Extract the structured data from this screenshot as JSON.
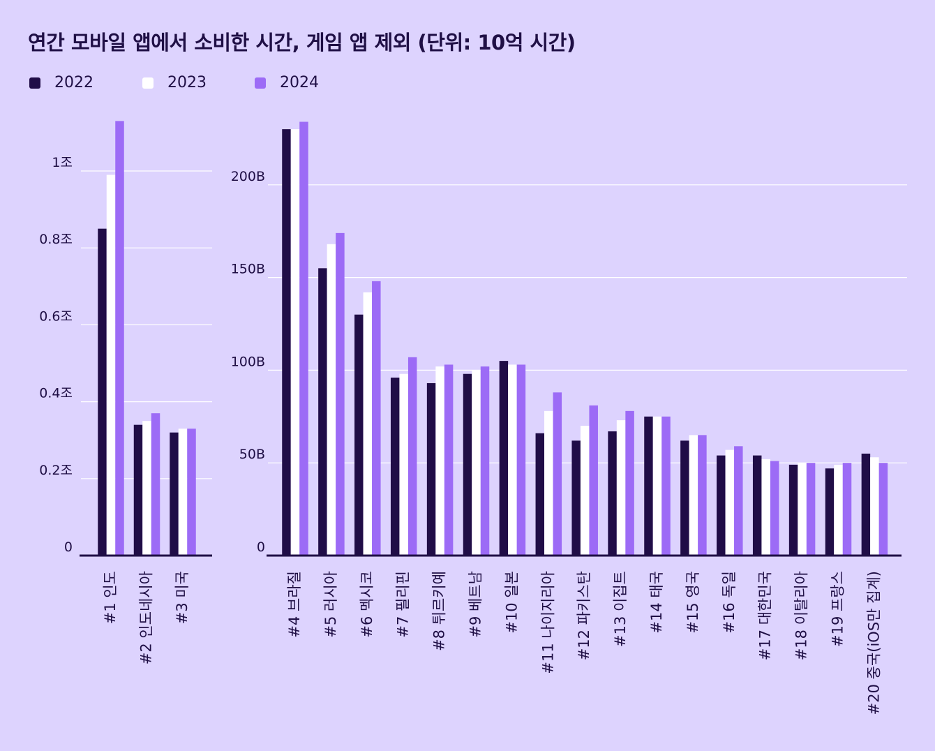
{
  "title": "연간 모바일 앱에서 소비한 시간, 게임 앱 제외 (단위: 10억 시간)",
  "legend": [
    {
      "label": "2022",
      "color": "#200d47"
    },
    {
      "label": "2023",
      "color": "#ffffff"
    },
    {
      "label": "2024",
      "color": "#9c6bf6"
    }
  ],
  "colors": {
    "background": "#ddd3fe",
    "grid": "#ffffff",
    "axis": "#1f0f45"
  },
  "chart_data": [
    {
      "type": "bar",
      "categories": [
        "#1 인도",
        "#2 인도네시아",
        "#3 미국"
      ],
      "series": [
        {
          "name": "2022",
          "values": [
            0.85,
            0.34,
            0.32
          ]
        },
        {
          "name": "2023",
          "values": [
            0.99,
            0.35,
            0.33
          ]
        },
        {
          "name": "2024",
          "values": [
            1.13,
            0.37,
            0.33
          ]
        }
      ],
      "yticks": [
        "0",
        "0.2조",
        "0.4조",
        "0.6조",
        "0.8조",
        "1조"
      ],
      "ylim": [
        0,
        1.2
      ],
      "grid": true
    },
    {
      "type": "bar",
      "categories": [
        "#4 브라질",
        "#5 러시아",
        "#6 멕시코",
        "#7 필리핀",
        "#8 튀르키예",
        "#9 베트남",
        "#10 일본",
        "#11 나이지리아",
        "#12 파키스탄",
        "#13 이집트",
        "#14 태국",
        "#15 영국",
        "#16 독일",
        "#17 대한민국",
        "#18 이탈리아",
        "#19 프랑스",
        "#20 중국(iOS만 집계)"
      ],
      "series": [
        {
          "name": "2022",
          "values": [
            230,
            155,
            130,
            96,
            93,
            98,
            105,
            66,
            62,
            67,
            75,
            62,
            54,
            54,
            49,
            47,
            55
          ]
        },
        {
          "name": "2023",
          "values": [
            230,
            168,
            142,
            98,
            102,
            100,
            103,
            78,
            70,
            73,
            75,
            65,
            57,
            52,
            50,
            49,
            53
          ]
        },
        {
          "name": "2024",
          "values": [
            234,
            174,
            148,
            107,
            103,
            102,
            103,
            88,
            81,
            78,
            75,
            65,
            59,
            51,
            50,
            50,
            50
          ]
        }
      ],
      "yticks": [
        "0",
        "50B",
        "100B",
        "150B",
        "200B"
      ],
      "ylim": [
        0,
        240
      ],
      "grid": true
    }
  ]
}
